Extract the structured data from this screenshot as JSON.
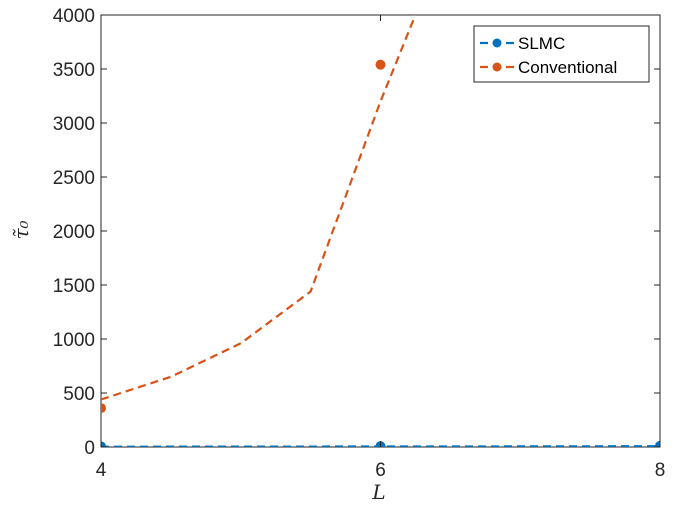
{
  "chart_data": {
    "type": "line",
    "x": [
      4,
      6,
      8
    ],
    "series": [
      {
        "name": "SLMC",
        "color": "#0072BD",
        "points": [
          [
            4,
            5
          ],
          [
            6,
            8
          ],
          [
            8,
            10
          ]
        ],
        "fit_curve": [
          [
            4,
            3
          ],
          [
            5,
            4
          ],
          [
            6,
            5
          ],
          [
            7,
            6
          ],
          [
            8,
            7
          ]
        ]
      },
      {
        "name": "Conventional",
        "color": "#D95319",
        "points": [
          [
            4,
            360
          ],
          [
            6,
            3540
          ]
        ],
        "fit_curve": [
          [
            4,
            440
          ],
          [
            4.5,
            650
          ],
          [
            5,
            960
          ],
          [
            5.5,
            1440
          ],
          [
            6,
            3200
          ],
          [
            6.25,
            4000
          ]
        ]
      }
    ],
    "xlabel": "L",
    "ylabel": "τ̃₀",
    "xlim": [
      4,
      8
    ],
    "ylim": [
      0,
      4000
    ],
    "xticks": [
      4,
      6,
      8
    ],
    "yticks": [
      0,
      500,
      1000,
      1500,
      2000,
      2500,
      3000,
      3500,
      4000
    ],
    "grid": false,
    "legend_position": "top-right"
  }
}
